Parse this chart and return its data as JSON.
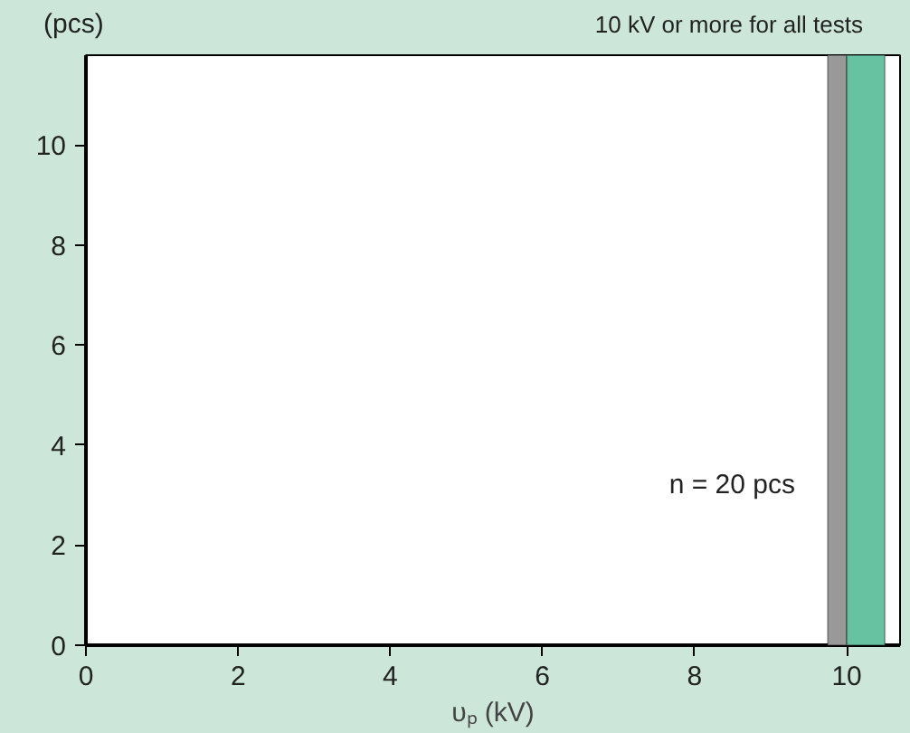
{
  "chart_data": {
    "type": "histogram",
    "ylabel": "(pcs)",
    "xlabel": "υₚ (kV)",
    "xlim": [
      0,
      10.7
    ],
    "ylim": [
      0,
      11.8
    ],
    "xticks": [
      0,
      2,
      4,
      6,
      8,
      10
    ],
    "yticks": [
      0,
      2,
      4,
      6,
      8,
      10
    ],
    "grid": false,
    "bands": [
      {
        "axis": "x",
        "from": 9.75,
        "to": 10,
        "color": "#999999"
      },
      {
        "axis": "x",
        "from": 10,
        "to": 10.5,
        "color": "#66c2a0"
      }
    ],
    "annotations": [
      "10 kV or more for all tests",
      "n = 20 pcs"
    ]
  }
}
